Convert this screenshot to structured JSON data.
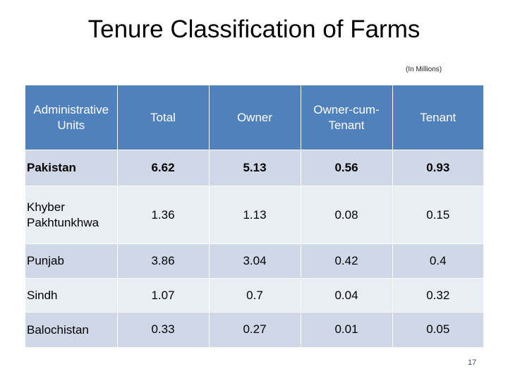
{
  "title": "Tenure Classification of Farms",
  "unit_note": "(In Millions)",
  "table": {
    "headers": [
      "Administrative Units",
      "Total",
      "Owner",
      "Owner-cum-Tenant",
      "Tenant"
    ],
    "rows": [
      {
        "label": "Pakistan",
        "values": [
          "6.62",
          "5.13",
          "0.56",
          "0.93"
        ]
      },
      {
        "label": "Khyber Pakhtunkhwa",
        "values": [
          "1.36",
          "1.13",
          "0.08",
          "0.15"
        ]
      },
      {
        "label": "Punjab",
        "values": [
          "3.86",
          "3.04",
          "0.42",
          "0.4"
        ]
      },
      {
        "label": "Sindh",
        "values": [
          "1.07",
          "0.7",
          "0.04",
          "0.32"
        ]
      },
      {
        "label": "Balochistan",
        "values": [
          "0.33",
          "0.27",
          "0.01",
          "0.05"
        ]
      }
    ]
  },
  "page_number": "17",
  "colors": {
    "header_bg": "#4f81bd",
    "row_odd": "#d0d8e8",
    "row_even": "#e9edf4"
  }
}
